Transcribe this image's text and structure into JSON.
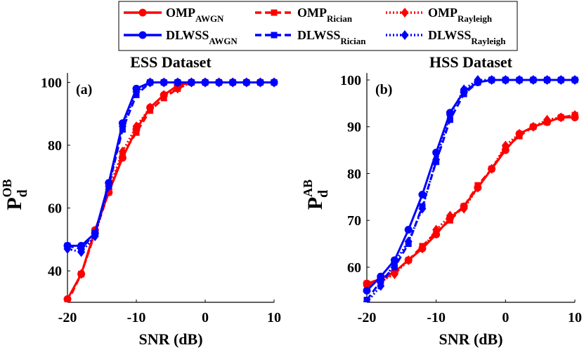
{
  "legend": {
    "entries": [
      {
        "id": "omp_awgn",
        "main": "OMP",
        "sub": "AWGN",
        "color": "#ff0000",
        "dash": "solid",
        "marker": "circle"
      },
      {
        "id": "omp_rician",
        "main": "OMP",
        "sub": "Rician",
        "color": "#ff0000",
        "dash": "dashed",
        "marker": "square"
      },
      {
        "id": "omp_rayleigh",
        "main": "OMP",
        "sub": "Rayleigh",
        "color": "#ff0000",
        "dash": "dotted",
        "marker": "diamond"
      },
      {
        "id": "dlwss_awgn",
        "main": "DLWSS",
        "sub": "AWGN",
        "color": "#0000ff",
        "dash": "solid",
        "marker": "circle"
      },
      {
        "id": "dlwss_rician",
        "main": "DLWSS",
        "sub": "Rician",
        "color": "#0000ff",
        "dash": "dashed",
        "marker": "square"
      },
      {
        "id": "dlwss_rayleigh",
        "main": "DLWSS",
        "sub": "Rayleigh",
        "color": "#0000ff",
        "dash": "dotted",
        "marker": "diamond"
      }
    ]
  },
  "chart_data": [
    {
      "type": "line",
      "title": "ESS Dataset",
      "panel_label": "(a)",
      "xlabel": "SNR (dB)",
      "ylabel_main": "P",
      "ylabel_sub": "d",
      "ylabel_sup": "OB",
      "xlim": [
        -20,
        10
      ],
      "ylim": [
        30,
        103
      ],
      "xticks": [
        -20,
        -10,
        0,
        10
      ],
      "yticks": [
        40,
        60,
        80,
        100
      ],
      "x": [
        -20,
        -18,
        -16,
        -14,
        -12,
        -10,
        -8,
        -6,
        -4,
        -2,
        0,
        2,
        4,
        6,
        8,
        10
      ],
      "series": [
        {
          "id": "omp_awgn",
          "name": "OMP_AWGN",
          "values": [
            31,
            39,
            53,
            65,
            76,
            85,
            92,
            96,
            99,
            100,
            100,
            100,
            100,
            100,
            100,
            100
          ]
        },
        {
          "id": "omp_rician",
          "name": "OMP_Rician",
          "values": [
            30,
            39,
            52,
            65,
            77,
            84,
            91,
            95,
            98,
            100,
            100,
            100,
            100,
            100,
            100,
            100
          ]
        },
        {
          "id": "omp_rayleigh",
          "name": "OMP_Rayleigh",
          "values": [
            31,
            39,
            52,
            66,
            78,
            86,
            92,
            96,
            98,
            100,
            100,
            100,
            100,
            100,
            100,
            100
          ]
        },
        {
          "id": "dlwss_awgn",
          "name": "DLWSS_AWGN",
          "values": [
            48,
            48,
            52,
            68,
            87,
            98,
            100,
            100,
            100,
            100,
            100,
            100,
            100,
            100,
            100,
            100
          ]
        },
        {
          "id": "dlwss_rician",
          "name": "DLWSS_Rician",
          "values": [
            48,
            47,
            52,
            67,
            85,
            96,
            100,
            100,
            100,
            100,
            100,
            100,
            100,
            100,
            100,
            100
          ]
        },
        {
          "id": "dlwss_rayleigh",
          "name": "DLWSS_Rayleigh",
          "values": [
            47,
            46,
            51,
            67,
            86,
            97,
            100,
            100,
            100,
            100,
            100,
            100,
            100,
            100,
            100,
            100
          ]
        }
      ]
    },
    {
      "type": "line",
      "title": "HSS Dataset",
      "panel_label": "(b)",
      "xlabel": "SNR (dB)",
      "ylabel_main": "P",
      "ylabel_sub": "d",
      "ylabel_sup": "AB",
      "xlim": [
        -20,
        10
      ],
      "ylim": [
        52.5,
        101.5
      ],
      "xticks": [
        -20,
        -10,
        0,
        10
      ],
      "yticks": [
        60,
        70,
        80,
        90,
        100
      ],
      "x": [
        -20,
        -18,
        -16,
        -14,
        -12,
        -10,
        -8,
        -6,
        -4,
        -2,
        0,
        2,
        4,
        6,
        8,
        10
      ],
      "series": [
        {
          "id": "omp_awgn",
          "name": "OMP_AWGN",
          "values": [
            56.5,
            57.5,
            59,
            61.5,
            64,
            67,
            70.5,
            73,
            77,
            81,
            85,
            88.5,
            90,
            91,
            92,
            92
          ]
        },
        {
          "id": "omp_rician",
          "name": "OMP_Rician",
          "values": [
            56.5,
            57,
            59,
            61.5,
            64.5,
            67.5,
            70,
            73,
            77.5,
            81,
            85.5,
            88,
            90,
            91,
            92,
            92.5
          ]
        },
        {
          "id": "omp_rayleigh",
          "name": "OMP_Rayleigh",
          "values": [
            56,
            57,
            58.5,
            61.5,
            64,
            68,
            71,
            72.5,
            77,
            81,
            86,
            88.5,
            90,
            91.5,
            92,
            92.5
          ]
        },
        {
          "id": "dlwss_awgn",
          "name": "DLWSS_AWGN",
          "values": [
            55,
            58,
            61.5,
            68,
            75.5,
            84.5,
            93,
            97.5,
            99.5,
            100,
            100,
            100,
            100,
            100,
            100,
            100
          ]
        },
        {
          "id": "dlwss_rician",
          "name": "DLWSS_Rician",
          "values": [
            53,
            57,
            60,
            65,
            73,
            82.5,
            91.5,
            97,
            99.5,
            100,
            100,
            100,
            100,
            100,
            100,
            100
          ]
        },
        {
          "id": "dlwss_rayleigh",
          "name": "DLWSS_Rayleigh",
          "values": [
            52.5,
            56,
            61,
            65.5,
            72.5,
            83,
            92.5,
            98,
            100,
            100,
            100,
            100,
            100,
            100,
            100,
            100
          ]
        }
      ]
    }
  ]
}
